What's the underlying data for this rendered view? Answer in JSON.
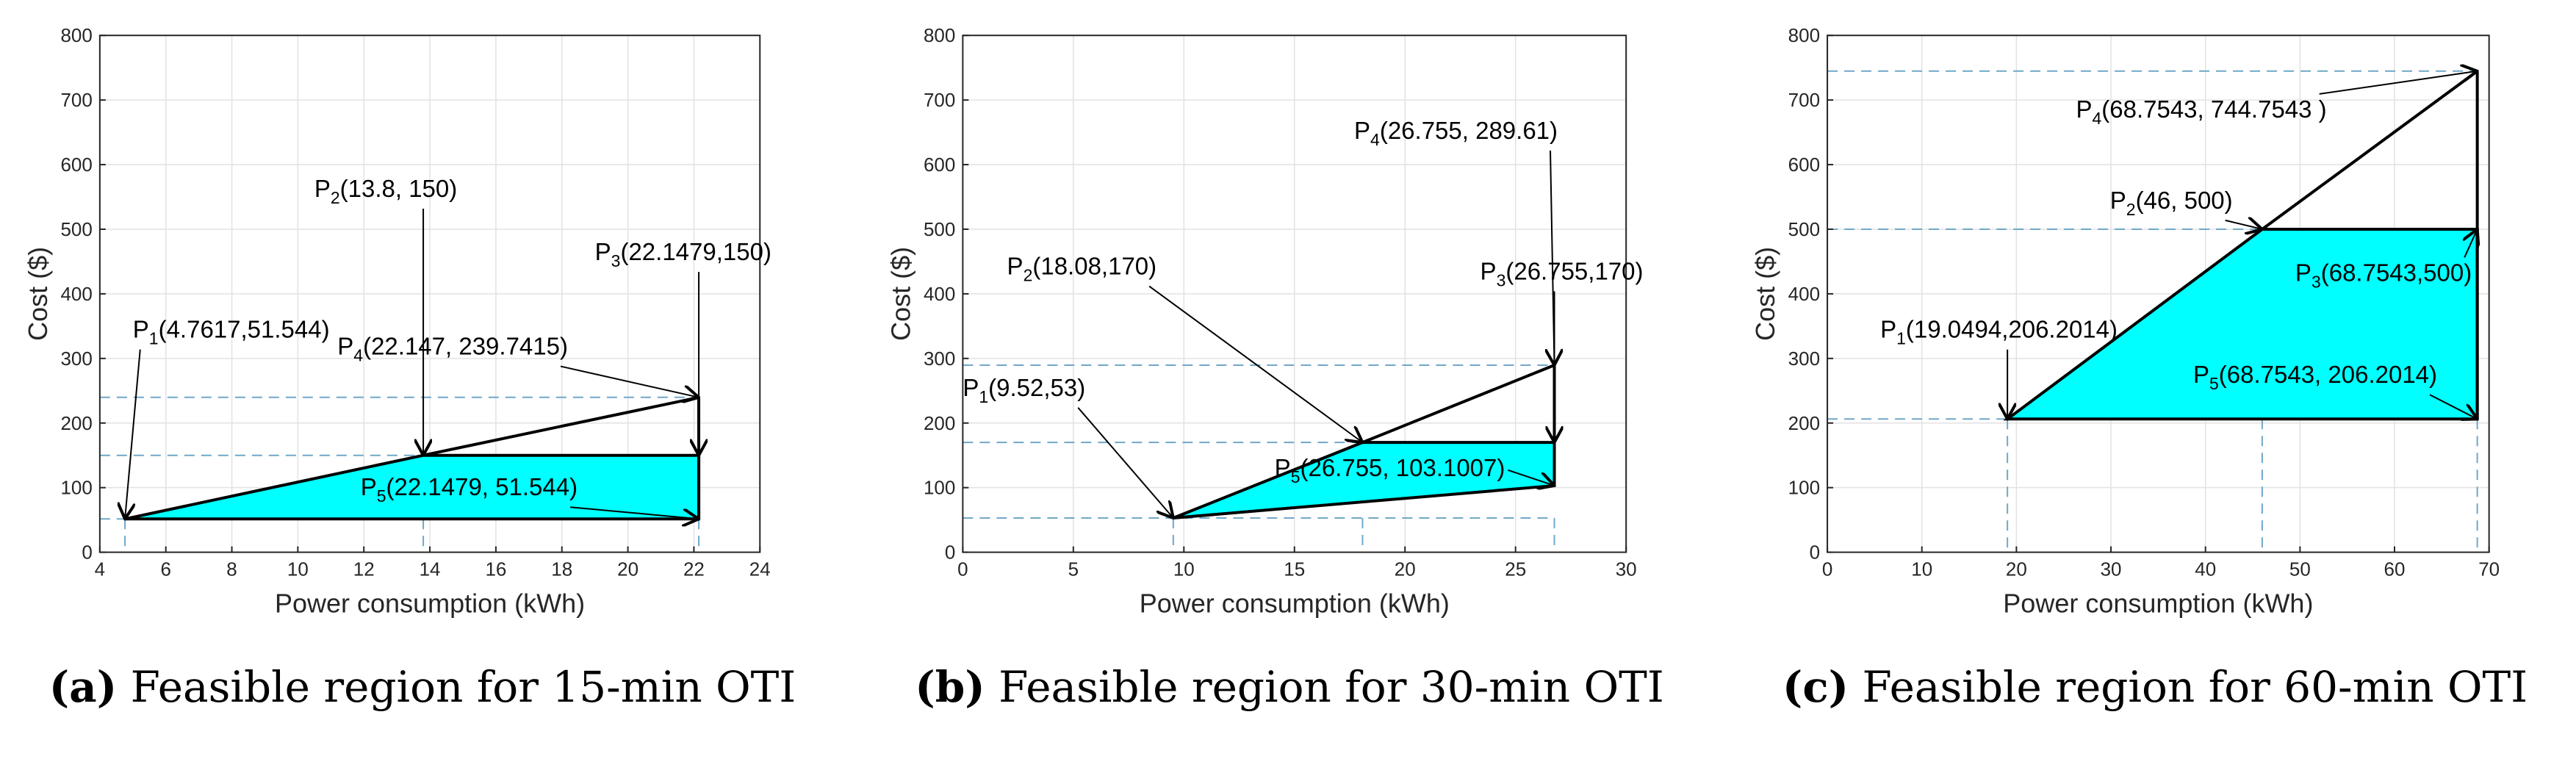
{
  "chart_data": [
    {
      "type": "line",
      "title": "",
      "xlabel": "Power consumption (kWh)",
      "ylabel": "Cost ($)",
      "xlim": [
        4,
        24
      ],
      "ylim": [
        0,
        800
      ],
      "xticks": [
        4,
        6,
        8,
        10,
        12,
        14,
        16,
        18,
        20,
        22,
        24
      ],
      "yticks": [
        0,
        100,
        200,
        300,
        400,
        500,
        600,
        700,
        800
      ],
      "grid": true,
      "caption_letter": "a",
      "caption_text": "Feasible region for 15-min OTI",
      "polygon": [
        [
          4.7617,
          51.544
        ],
        [
          13.8,
          150
        ],
        [
          22.1479,
          150
        ],
        [
          22.1479,
          51.544
        ]
      ],
      "upper_line": [
        [
          13.8,
          150
        ],
        [
          22.147,
          239.7415
        ]
      ],
      "dashed_h": [
        51.544,
        150,
        239.7415
      ],
      "dashed_v": [
        4.7617,
        13.8,
        22.1479
      ],
      "points": [
        {
          "id": "P1",
          "label": "(4.7617,51.544)",
          "x": 4.7617,
          "y": 51.544,
          "lx": 5.0,
          "ly": 332
        },
        {
          "id": "P2",
          "label": "(13.8, 150)",
          "x": 13.8,
          "y": 150,
          "lx": 10.5,
          "ly": 550
        },
        {
          "id": "P3",
          "label": "(22.1479,150)",
          "x": 22.1479,
          "y": 150,
          "lx": 19.0,
          "ly": 452
        },
        {
          "id": "P4",
          "label": "(22.147, 239.7415)",
          "x": 22.147,
          "y": 239.7415,
          "lx": 11.2,
          "ly": 306
        },
        {
          "id": "P5",
          "label": "(22.1479, 51.544)",
          "x": 22.1479,
          "y": 51.544,
          "lx": 11.9,
          "ly": 88
        }
      ]
    },
    {
      "type": "line",
      "title": "",
      "xlabel": "Power consumption (kWh)",
      "ylabel": "Cost ($)",
      "xlim": [
        0,
        30
      ],
      "ylim": [
        0,
        800
      ],
      "xticks": [
        0,
        5,
        10,
        15,
        20,
        25,
        30
      ],
      "yticks": [
        0,
        100,
        200,
        300,
        400,
        500,
        600,
        700,
        800
      ],
      "grid": true,
      "caption_letter": "b",
      "caption_text": "Feasible region for 30-min OTI",
      "polygon": [
        [
          9.52,
          53
        ],
        [
          18.08,
          170
        ],
        [
          26.755,
          170
        ],
        [
          26.755,
          103.1007
        ]
      ],
      "upper_line": [
        [
          18.08,
          170
        ],
        [
          26.755,
          289.61
        ]
      ],
      "dashed_h": [
        53,
        170,
        289.61
      ],
      "dashed_v": [
        9.52,
        18.08,
        26.755
      ],
      "points": [
        {
          "id": "P1",
          "label": "(9.52,53)",
          "x": 9.52,
          "y": 53,
          "lx": 0.0,
          "ly": 242
        },
        {
          "id": "P2",
          "label": "(18.08,170)",
          "x": 18.08,
          "y": 170,
          "lx": 2.0,
          "ly": 430
        },
        {
          "id": "P3",
          "label": "(26.755,170)",
          "x": 26.755,
          "y": 170,
          "lx": 23.4,
          "ly": 422
        },
        {
          "id": "P4",
          "label": "(26.755, 289.61)",
          "x": 26.755,
          "y": 289.61,
          "lx": 17.7,
          "ly": 640
        },
        {
          "id": "P5",
          "label": "(26.755, 103.1007)",
          "x": 26.755,
          "y": 103.1007,
          "lx": 14.1,
          "ly": 118
        }
      ]
    },
    {
      "type": "line",
      "title": "",
      "xlabel": "Power consumption (kWh)",
      "ylabel": "Cost ($)",
      "xlim": [
        0,
        70
      ],
      "ylim": [
        0,
        800
      ],
      "xticks": [
        0,
        10,
        20,
        30,
        40,
        50,
        60,
        70
      ],
      "yticks": [
        0,
        100,
        200,
        300,
        400,
        500,
        600,
        700,
        800
      ],
      "grid": true,
      "caption_letter": "c",
      "caption_text": "Feasible region for 60-min OTI",
      "polygon": [
        [
          19.0494,
          206.2014
        ],
        [
          46,
          500
        ],
        [
          68.7543,
          500
        ],
        [
          68.7543,
          206.2014
        ]
      ],
      "upper_line": [
        [
          46,
          500
        ],
        [
          68.7543,
          744.7543
        ]
      ],
      "dashed_h": [
        206.2014,
        500,
        744.7543
      ],
      "dashed_v": [
        19.0494,
        46,
        68.7543
      ],
      "points": [
        {
          "id": "P1",
          "label": "(19.0494,206.2014)",
          "x": 19.0494,
          "y": 206.2014,
          "lx": 5.6,
          "ly": 332
        },
        {
          "id": "P2",
          "label": "(46, 500)",
          "x": 46,
          "y": 500,
          "lx": 29.9,
          "ly": 532
        },
        {
          "id": "P3",
          "label": "(68.7543,500)",
          "x": 68.7543,
          "y": 500,
          "lx": 49.5,
          "ly": 420
        },
        {
          "id": "P4",
          "label": "(68.7543, 744.7543 )",
          "x": 68.7543,
          "y": 744.7543,
          "lx": 26.3,
          "ly": 673
        },
        {
          "id": "P5",
          "label": "(68.7543, 206.2014)",
          "x": 68.7543,
          "y": 206.2014,
          "lx": 38.7,
          "ly": 262
        }
      ]
    }
  ]
}
